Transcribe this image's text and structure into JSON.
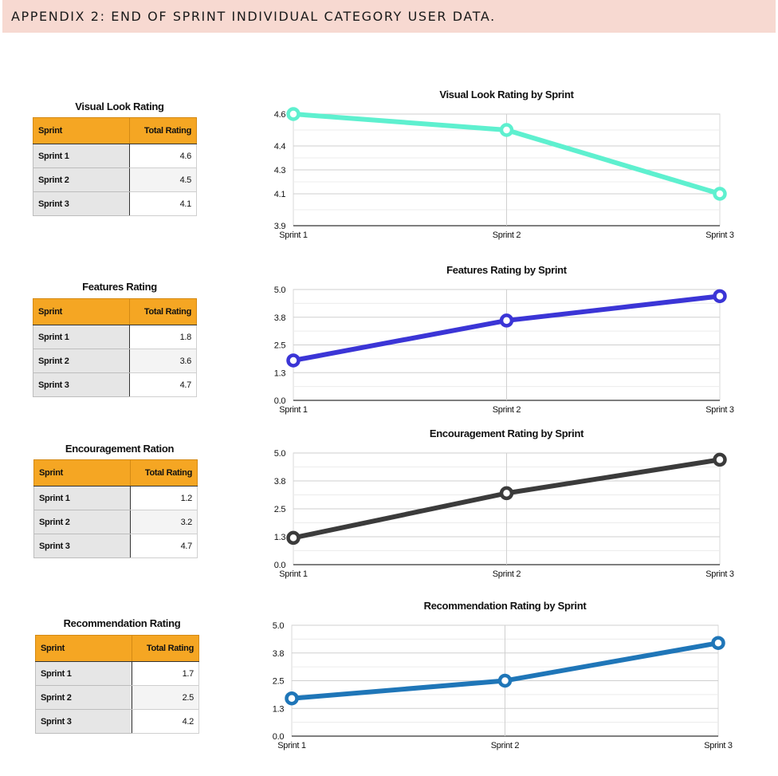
{
  "header": {
    "title": "APPENDIX 2: END OF SPRINT INDIVIDUAL CATEGORY USER DATA."
  },
  "tables": [
    {
      "title": "Visual Look Rating",
      "col1": "Sprint",
      "col2": "Total Rating",
      "rows": [
        {
          "label": "Sprint 1",
          "value": "4.6"
        },
        {
          "label": "Sprint 2",
          "value": "4.5"
        },
        {
          "label": "Sprint 3",
          "value": "4.1"
        }
      ]
    },
    {
      "title": "Features Rating",
      "col1": "Sprint",
      "col2": "Total Rating",
      "rows": [
        {
          "label": "Sprint 1",
          "value": "1.8"
        },
        {
          "label": "Sprint 2",
          "value": "3.6"
        },
        {
          "label": "Sprint 3",
          "value": "4.7"
        }
      ]
    },
    {
      "title": "Encouragement Ration",
      "col1": "Sprint",
      "col2": "Total Rating",
      "rows": [
        {
          "label": "Sprint 1",
          "value": "1.2"
        },
        {
          "label": "Sprint 2",
          "value": "3.2"
        },
        {
          "label": "Sprint 3",
          "value": "4.7"
        }
      ]
    },
    {
      "title": "Recommendation Rating",
      "col1": "Sprint",
      "col2": "Total Rating",
      "rows": [
        {
          "label": "Sprint 1",
          "value": "1.7"
        },
        {
          "label": "Sprint 2",
          "value": "2.5"
        },
        {
          "label": "Sprint 3",
          "value": "4.2"
        }
      ]
    }
  ],
  "chart_data": [
    {
      "type": "line",
      "title": "Visual Look Rating by Sprint",
      "categories": [
        "Sprint 1",
        "Sprint 2",
        "Sprint 3"
      ],
      "ylim": [
        3.9,
        4.6
      ],
      "yticks": [
        "3.9",
        "4.1",
        "4.3",
        "4.4",
        "4.6"
      ],
      "ytick_values": [
        3.9,
        4.1,
        4.25,
        4.4,
        4.6
      ],
      "series": [
        {
          "values": [
            4.6,
            4.5,
            4.1
          ],
          "color": "#5ef0cf"
        }
      ],
      "grid": true,
      "legend": "none"
    },
    {
      "type": "line",
      "title": "Features Rating by Sprint",
      "categories": [
        "Sprint 1",
        "Sprint 2",
        "Sprint 3"
      ],
      "ylim": [
        0,
        5
      ],
      "yticks": [
        "0.0",
        "1.3",
        "2.5",
        "3.8",
        "5.0"
      ],
      "ytick_values": [
        0,
        1.25,
        2.5,
        3.75,
        5
      ],
      "series": [
        {
          "values": [
            1.8,
            3.6,
            4.7
          ],
          "color": "#3b35d6"
        }
      ],
      "grid": true,
      "legend": "none"
    },
    {
      "type": "line",
      "title": "Encouragement Rating by Sprint",
      "categories": [
        "Sprint 1",
        "Sprint 2",
        "Sprint 3"
      ],
      "ylim": [
        0,
        5
      ],
      "yticks": [
        "0.0",
        "1.3",
        "2.5",
        "3.8",
        "5.0"
      ],
      "ytick_values": [
        0,
        1.25,
        2.5,
        3.75,
        5
      ],
      "series": [
        {
          "values": [
            1.2,
            3.2,
            4.7
          ],
          "color": "#3b3b3b"
        }
      ],
      "grid": true,
      "legend": "none"
    },
    {
      "type": "line",
      "title": "Recommendation Rating by Sprint",
      "categories": [
        "Sprint 1",
        "Sprint 2",
        "Sprint 3"
      ],
      "ylim": [
        0,
        5
      ],
      "yticks": [
        "0.0",
        "1.3",
        "2.5",
        "3.8",
        "5.0"
      ],
      "ytick_values": [
        0,
        1.25,
        2.5,
        3.75,
        5
      ],
      "series": [
        {
          "values": [
            1.7,
            2.5,
            4.2
          ],
          "color": "#1f76b8"
        }
      ],
      "grid": true,
      "legend": "none"
    }
  ]
}
